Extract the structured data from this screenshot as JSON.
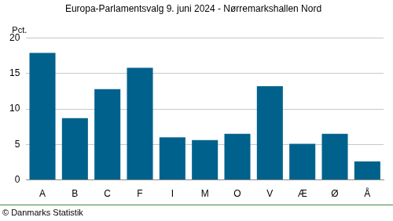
{
  "chart_data": {
    "type": "bar",
    "title": "Europa-Parlamentsvalg 9. juni 2024 - Nørremarkshallen Nord",
    "ylabel": "Pct.",
    "source": "© Danmarks Statistik",
    "categories": [
      "A",
      "B",
      "C",
      "F",
      "I",
      "M",
      "O",
      "V",
      "Æ",
      "Ø",
      "Å"
    ],
    "values": [
      17.9,
      8.7,
      12.8,
      15.8,
      6.0,
      5.6,
      6.5,
      13.2,
      5.1,
      6.5,
      2.6
    ],
    "color": "#00628c",
    "ylim": [
      0,
      20
    ],
    "yticks": [
      0,
      5,
      10,
      15,
      20
    ],
    "grid": true
  }
}
